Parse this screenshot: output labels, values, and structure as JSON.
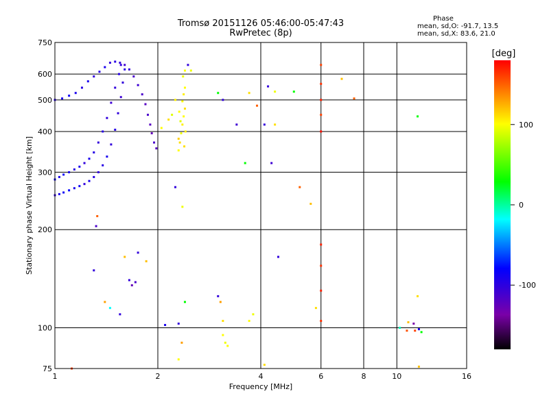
{
  "header": {
    "title_line1": "Tromsø 20151126 05:46:00-05:47:43",
    "title_line2": "RwPretec (8p)"
  },
  "phase_summary": {
    "heading": "Phase",
    "line_o": "mean, sd,O: -91.7, 13.5",
    "line_x": "mean, sd,X:  83.6, 21.0"
  },
  "colorbar": {
    "label": "[deg]",
    "ticks": [
      {
        "value": 100,
        "label": "100"
      },
      {
        "value": 0,
        "label": "0"
      },
      {
        "value": -100,
        "label": "-100"
      }
    ],
    "range": [
      -180,
      180
    ]
  },
  "chart_data": {
    "type": "scatter",
    "title": "Tromsø 20151126 05:46:00-05:47:43",
    "subtitle": "RwPretec (8p)",
    "xlabel": "Frequency [MHz]",
    "ylabel": "Stationary phase Virtual Height [km]",
    "xscale": "log",
    "yscale": "log",
    "xlim": [
      1,
      16
    ],
    "ylim": [
      75,
      750
    ],
    "xticks": [
      1,
      2,
      4,
      6,
      8,
      10,
      16
    ],
    "yticks": [
      75,
      100,
      200,
      300,
      400,
      500,
      600,
      750
    ],
    "x_gridlines": [
      2,
      4,
      6,
      8,
      10
    ],
    "y_gridlines": [
      100,
      200,
      300,
      400,
      500,
      600
    ],
    "color_variable": "phase [deg]",
    "points": [
      {
        "f": 1.0,
        "h": 255,
        "p": -110
      },
      {
        "f": 1.03,
        "h": 257,
        "p": -100
      },
      {
        "f": 1.06,
        "h": 260,
        "p": -95
      },
      {
        "f": 1.1,
        "h": 264,
        "p": -90
      },
      {
        "f": 1.14,
        "h": 268,
        "p": -100
      },
      {
        "f": 1.18,
        "h": 272,
        "p": -95
      },
      {
        "f": 1.22,
        "h": 276,
        "p": -110
      },
      {
        "f": 1.26,
        "h": 282,
        "p": -100
      },
      {
        "f": 1.3,
        "h": 290,
        "p": -105
      },
      {
        "f": 1.34,
        "h": 300,
        "p": -110
      },
      {
        "f": 1.38,
        "h": 315,
        "p": -105
      },
      {
        "f": 1.42,
        "h": 335,
        "p": -100
      },
      {
        "f": 1.46,
        "h": 365,
        "p": -110
      },
      {
        "f": 1.5,
        "h": 405,
        "p": -105
      },
      {
        "f": 1.53,
        "h": 455,
        "p": -110
      },
      {
        "f": 1.56,
        "h": 510,
        "p": -115
      },
      {
        "f": 1.58,
        "h": 565,
        "p": -110
      },
      {
        "f": 1.6,
        "h": 620,
        "p": -105
      },
      {
        "f": 1.0,
        "h": 285,
        "p": -95
      },
      {
        "f": 1.03,
        "h": 290,
        "p": -100
      },
      {
        "f": 1.06,
        "h": 295,
        "p": -95
      },
      {
        "f": 1.1,
        "h": 300,
        "p": -100
      },
      {
        "f": 1.14,
        "h": 306,
        "p": -105
      },
      {
        "f": 1.18,
        "h": 312,
        "p": -100
      },
      {
        "f": 1.22,
        "h": 320,
        "p": -110
      },
      {
        "f": 1.26,
        "h": 330,
        "p": -100
      },
      {
        "f": 1.3,
        "h": 345,
        "p": -105
      },
      {
        "f": 1.34,
        "h": 370,
        "p": -110
      },
      {
        "f": 1.38,
        "h": 400,
        "p": -105
      },
      {
        "f": 1.42,
        "h": 440,
        "p": -110
      },
      {
        "f": 1.46,
        "h": 490,
        "p": -115
      },
      {
        "f": 1.5,
        "h": 545,
        "p": -110
      },
      {
        "f": 1.54,
        "h": 600,
        "p": -105
      },
      {
        "f": 1.56,
        "h": 640,
        "p": -110
      },
      {
        "f": 1.0,
        "h": 500,
        "p": -105
      },
      {
        "f": 1.05,
        "h": 505,
        "p": -100
      },
      {
        "f": 1.1,
        "h": 515,
        "p": -95
      },
      {
        "f": 1.15,
        "h": 525,
        "p": -100
      },
      {
        "f": 1.2,
        "h": 545,
        "p": -105
      },
      {
        "f": 1.25,
        "h": 570,
        "p": -100
      },
      {
        "f": 1.3,
        "h": 590,
        "p": -110
      },
      {
        "f": 1.35,
        "h": 610,
        "p": -105
      },
      {
        "f": 1.4,
        "h": 630,
        "p": -100
      },
      {
        "f": 1.45,
        "h": 650,
        "p": -110
      },
      {
        "f": 1.5,
        "h": 655,
        "p": -105
      },
      {
        "f": 1.55,
        "h": 650,
        "p": -110
      },
      {
        "f": 1.6,
        "h": 640,
        "p": -115
      },
      {
        "f": 1.65,
        "h": 620,
        "p": -110
      },
      {
        "f": 1.7,
        "h": 590,
        "p": -120
      },
      {
        "f": 1.75,
        "h": 555,
        "p": -115
      },
      {
        "f": 1.8,
        "h": 520,
        "p": -120
      },
      {
        "f": 1.84,
        "h": 485,
        "p": -125
      },
      {
        "f": 1.87,
        "h": 450,
        "p": -120
      },
      {
        "f": 1.9,
        "h": 420,
        "p": -125
      },
      {
        "f": 1.92,
        "h": 395,
        "p": -130
      },
      {
        "f": 1.95,
        "h": 370,
        "p": -120
      },
      {
        "f": 1.98,
        "h": 355,
        "p": -125
      },
      {
        "f": 2.3,
        "h": 350,
        "p": 100
      },
      {
        "f": 2.32,
        "h": 370,
        "p": 110
      },
      {
        "f": 2.34,
        "h": 395,
        "p": 95
      },
      {
        "f": 2.36,
        "h": 420,
        "p": 105
      },
      {
        "f": 2.38,
        "h": 445,
        "p": 100
      },
      {
        "f": 2.4,
        "h": 470,
        "p": 110
      },
      {
        "f": 2.36,
        "h": 495,
        "p": 100
      },
      {
        "f": 2.38,
        "h": 520,
        "p": 105
      },
      {
        "f": 2.4,
        "h": 545,
        "p": 100
      },
      {
        "f": 2.3,
        "h": 380,
        "p": 115
      },
      {
        "f": 2.33,
        "h": 430,
        "p": 90
      },
      {
        "f": 2.41,
        "h": 400,
        "p": 105
      },
      {
        "f": 2.31,
        "h": 460,
        "p": 100
      },
      {
        "f": 2.39,
        "h": 360,
        "p": 110
      },
      {
        "f": 2.37,
        "h": 590,
        "p": 95
      },
      {
        "f": 2.36,
        "h": 235,
        "p": 95
      },
      {
        "f": 6.0,
        "h": 640,
        "p": 160
      },
      {
        "f": 6.0,
        "h": 560,
        "p": 165
      },
      {
        "f": 6.0,
        "h": 500,
        "p": 170
      },
      {
        "f": 6.0,
        "h": 450,
        "p": 160
      },
      {
        "f": 6.0,
        "h": 400,
        "p": 175
      },
      {
        "f": 6.0,
        "h": 180,
        "p": 170
      },
      {
        "f": 6.0,
        "h": 155,
        "p": 165
      },
      {
        "f": 6.0,
        "h": 130,
        "p": 170
      },
      {
        "f": 6.0,
        "h": 105,
        "p": 165
      },
      {
        "f": 6.9,
        "h": 580,
        "p": 120
      },
      {
        "f": 7.5,
        "h": 505,
        "p": 150
      },
      {
        "f": 3.0,
        "h": 125,
        "p": -110
      },
      {
        "f": 3.05,
        "h": 120,
        "p": 130
      },
      {
        "f": 3.1,
        "h": 95,
        "p": 100
      },
      {
        "f": 3.15,
        "h": 90,
        "p": 95
      },
      {
        "f": 3.1,
        "h": 105,
        "p": 110
      },
      {
        "f": 3.2,
        "h": 88,
        "p": 100
      },
      {
        "f": 3.7,
        "h": 105,
        "p": 100
      },
      {
        "f": 3.8,
        "h": 110,
        "p": 95
      },
      {
        "f": 2.35,
        "h": 90,
        "p": 130
      },
      {
        "f": 2.3,
        "h": 80,
        "p": 100
      },
      {
        "f": 2.1,
        "h": 102,
        "p": -100
      },
      {
        "f": 2.3,
        "h": 103,
        "p": -110
      },
      {
        "f": 2.4,
        "h": 120,
        "p": 20
      },
      {
        "f": 1.3,
        "h": 150,
        "p": -110
      },
      {
        "f": 1.4,
        "h": 120,
        "p": 130
      },
      {
        "f": 1.45,
        "h": 115,
        "p": -20
      },
      {
        "f": 1.55,
        "h": 110,
        "p": -110
      },
      {
        "f": 1.6,
        "h": 165,
        "p": 120
      },
      {
        "f": 1.65,
        "h": 140,
        "p": -110
      },
      {
        "f": 1.68,
        "h": 135,
        "p": -130
      },
      {
        "f": 1.72,
        "h": 138,
        "p": -120
      },
      {
        "f": 1.75,
        "h": 170,
        "p": -110
      },
      {
        "f": 1.85,
        "h": 160,
        "p": 120
      },
      {
        "f": 1.32,
        "h": 205,
        "p": -120
      },
      {
        "f": 1.33,
        "h": 220,
        "p": 150
      },
      {
        "f": 1.12,
        "h": 75,
        "p": 160
      },
      {
        "f": 2.25,
        "h": 270,
        "p": -110
      },
      {
        "f": 2.2,
        "h": 450,
        "p": 90
      },
      {
        "f": 2.45,
        "h": 640,
        "p": -110
      },
      {
        "f": 2.05,
        "h": 410,
        "p": 100
      },
      {
        "f": 2.15,
        "h": 435,
        "p": 110
      },
      {
        "f": 2.25,
        "h": 500,
        "p": 105
      },
      {
        "f": 2.5,
        "h": 615,
        "p": 95
      },
      {
        "f": 2.4,
        "h": 615,
        "p": 100
      },
      {
        "f": 3.0,
        "h": 525,
        "p": 20
      },
      {
        "f": 3.1,
        "h": 500,
        "p": -110
      },
      {
        "f": 3.4,
        "h": 420,
        "p": -115
      },
      {
        "f": 3.6,
        "h": 320,
        "p": 20
      },
      {
        "f": 3.7,
        "h": 525,
        "p": 110
      },
      {
        "f": 3.9,
        "h": 480,
        "p": 150
      },
      {
        "f": 4.1,
        "h": 420,
        "p": -110
      },
      {
        "f": 4.2,
        "h": 550,
        "p": -110
      },
      {
        "f": 4.3,
        "h": 320,
        "p": -115
      },
      {
        "f": 4.4,
        "h": 420,
        "p": 110
      },
      {
        "f": 4.4,
        "h": 530,
        "p": 95
      },
      {
        "f": 4.5,
        "h": 165,
        "p": -110
      },
      {
        "f": 5.0,
        "h": 530,
        "p": 20
      },
      {
        "f": 5.2,
        "h": 270,
        "p": 150
      },
      {
        "f": 5.6,
        "h": 240,
        "p": 120
      },
      {
        "f": 5.8,
        "h": 115,
        "p": 110
      },
      {
        "f": 4.1,
        "h": 77,
        "p": 110
      },
      {
        "f": 10.2,
        "h": 100,
        "p": -10
      },
      {
        "f": 10.7,
        "h": 98,
        "p": 155
      },
      {
        "f": 10.8,
        "h": 104,
        "p": 120
      },
      {
        "f": 11.2,
        "h": 103,
        "p": -140
      },
      {
        "f": 11.3,
        "h": 98,
        "p": 160
      },
      {
        "f": 11.5,
        "h": 125,
        "p": 110
      },
      {
        "f": 11.6,
        "h": 99,
        "p": -100
      },
      {
        "f": 11.8,
        "h": 97,
        "p": 20
      },
      {
        "f": 11.6,
        "h": 76,
        "p": 120
      },
      {
        "f": 11.5,
        "h": 445,
        "p": 20
      }
    ]
  }
}
